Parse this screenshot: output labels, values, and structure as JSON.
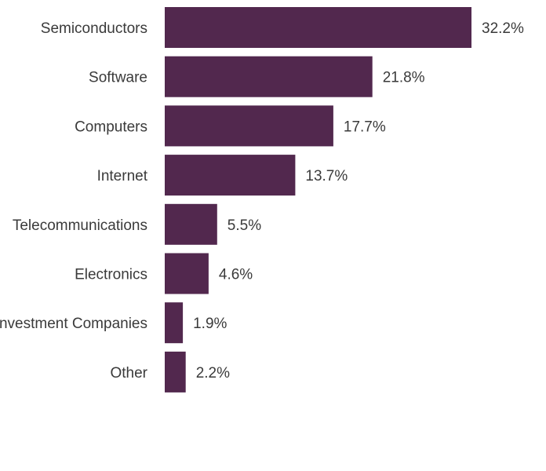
{
  "chart_data": {
    "type": "bar",
    "orientation": "horizontal",
    "categories": [
      "Semiconductors",
      "Software",
      "Computers",
      "Internet",
      "Telecommunications",
      "Electronics",
      "Investment Companies",
      "Other"
    ],
    "values": [
      32.2,
      21.8,
      17.7,
      13.7,
      5.5,
      4.6,
      1.9,
      2.2
    ],
    "value_labels": [
      "32.2%",
      "21.8%",
      "17.7%",
      "13.7%",
      "5.5%",
      "4.6%",
      "1.9%",
      "2.2%"
    ],
    "unit": "%",
    "xlim": [
      0,
      32.2
    ],
    "grid": false,
    "legend": "none",
    "colors": {
      "bar": "#52284e",
      "text": "#3a3a3a",
      "background": "#ffffff"
    }
  }
}
